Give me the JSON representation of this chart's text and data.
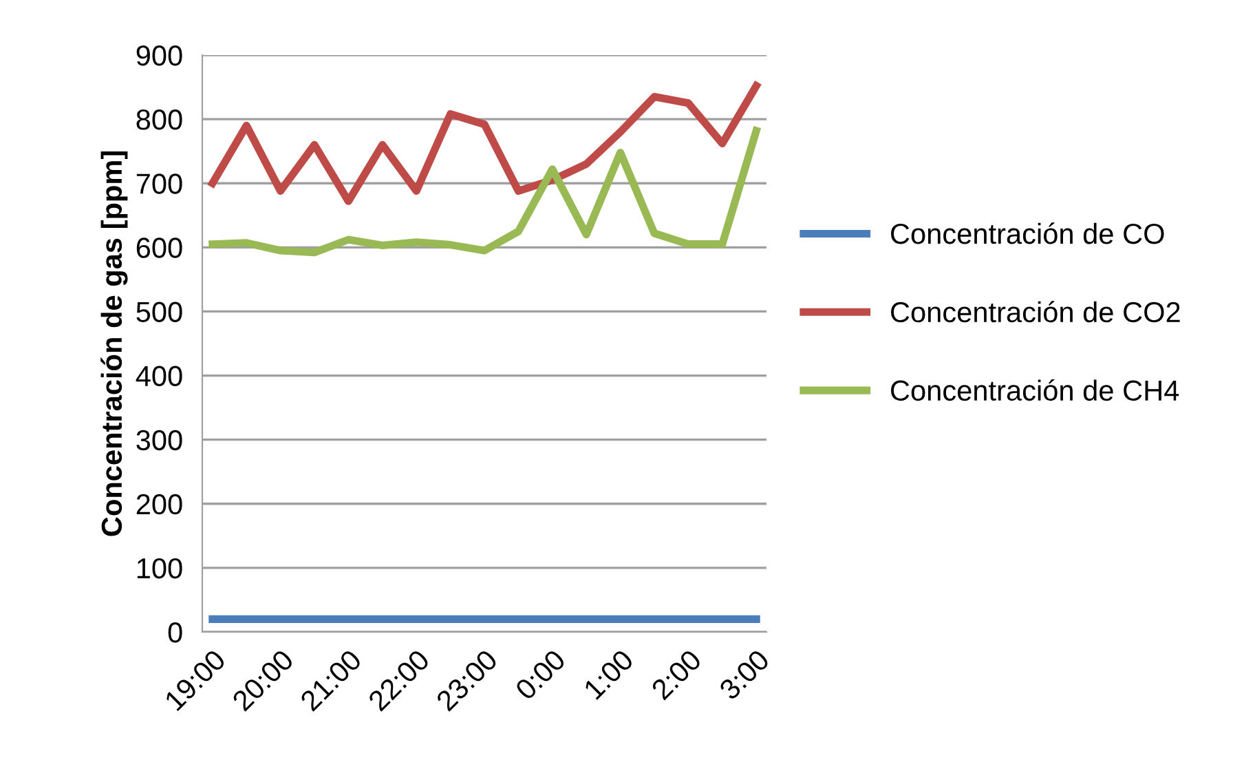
{
  "chart_data": {
    "type": "line",
    "ylabel": "Concentración de gas [ppm]",
    "categories": [
      "19:00",
      null,
      "20:00",
      null,
      "21:00",
      null,
      "22:00",
      null,
      "23:00",
      null,
      "0:00",
      null,
      "1:00",
      null,
      "2:00",
      null,
      "3:00"
    ],
    "series": [
      {
        "name": "Concentración de CO",
        "color": "#4a7ebb",
        "values": [
          20,
          20,
          20,
          20,
          20,
          20,
          20,
          20,
          20,
          20,
          20,
          20,
          20,
          20,
          20,
          20,
          20
        ]
      },
      {
        "name": "Concentración de CO2",
        "color": "#be4b48",
        "values": [
          700,
          790,
          688,
          760,
          672,
          760,
          688,
          808,
          792,
          688,
          705,
          730,
          780,
          835,
          825,
          762,
          852
        ]
      },
      {
        "name": "Concentración de CH4",
        "color": "#98b954",
        "values": [
          605,
          607,
          595,
          592,
          612,
          603,
          608,
          604,
          595,
          625,
          722,
          620,
          748,
          622,
          605,
          605,
          782
        ]
      }
    ],
    "ylim": [
      0,
      900
    ],
    "yticks": [
      0,
      100,
      200,
      300,
      400,
      500,
      600,
      700,
      800,
      900
    ],
    "grid": "y",
    "legend": "right",
    "marker": "none",
    "line_style": "solid"
  }
}
